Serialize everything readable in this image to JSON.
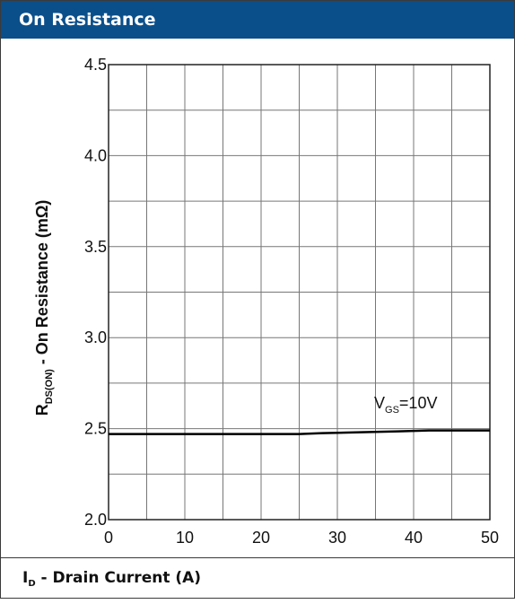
{
  "header": {
    "title": "On Resistance"
  },
  "footer": {
    "xlabel_main": "I",
    "xlabel_sub": "D",
    "xlabel_rest": " - Drain Current (A)"
  },
  "chart_data": {
    "type": "line",
    "title": "On Resistance",
    "ylabel": {
      "main": "R",
      "sub": "DS(ON)",
      "rest": " - On Resistance (mΩ)"
    },
    "xlabel": "I_D - Drain Current (A)",
    "xlim": [
      0,
      50
    ],
    "ylim": [
      2.0,
      4.5
    ],
    "x_ticks": [
      "0",
      "10",
      "20",
      "30",
      "40",
      "50"
    ],
    "y_ticks": [
      "2.0",
      "2.5",
      "3.0",
      "3.5",
      "4.0",
      "4.5"
    ],
    "grid": true,
    "series": [
      {
        "name": "VGS=10V",
        "label": {
          "main": "V",
          "sub": "GS",
          "rest": "=10V"
        },
        "color": "#000000",
        "x": [
          0,
          5,
          10,
          15,
          20,
          25,
          28,
          33,
          38,
          42,
          46,
          50
        ],
        "y": [
          2.47,
          2.47,
          2.47,
          2.47,
          2.47,
          2.47,
          2.475,
          2.48,
          2.485,
          2.49,
          2.49,
          2.49
        ]
      }
    ]
  }
}
